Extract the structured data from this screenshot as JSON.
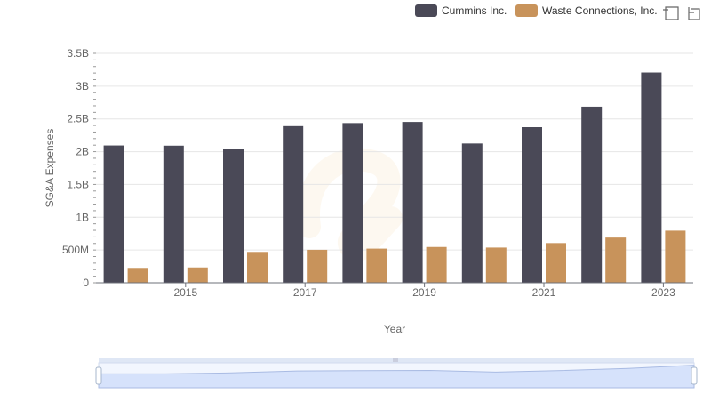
{
  "chart_data": {
    "type": "bar",
    "x": [
      2014,
      2015,
      2016,
      2017,
      2018,
      2019,
      2020,
      2021,
      2022,
      2023
    ],
    "x_tick_labels": [
      "2015",
      "2017",
      "2019",
      "2021",
      "2023"
    ],
    "xlabel": "Year",
    "ylabel": "SG&A Expenses",
    "ylim": [
      0,
      3500000000
    ],
    "y_ticks": [
      0,
      500000000,
      1000000000,
      1500000000,
      2000000000,
      2500000000,
      3000000000,
      3500000000
    ],
    "y_tick_labels": [
      "0",
      "500M",
      "1B",
      "1.5B",
      "2B",
      "2.5B",
      "3B",
      "3.5B"
    ],
    "grid": true,
    "legend_position": "top-right",
    "series": [
      {
        "name": "Cummins Inc.",
        "color": "#4a4957",
        "values": [
          2095000000,
          2092000000,
          2046000000,
          2390000000,
          2437000000,
          2454000000,
          2125000000,
          2374000000,
          2687000000,
          3208000000
        ]
      },
      {
        "name": "Waste Connections, Inc.",
        "color": "#c8935b",
        "values": [
          227000000,
          234000000,
          471000000,
          503000000,
          521000000,
          546000000,
          537000000,
          606000000,
          690000000,
          795000000
        ]
      }
    ]
  },
  "toolbar": {
    "zoom_icon": "zoom-select-icon",
    "reset_icon": "reset-zoom-icon"
  },
  "data_zoom": {
    "start": 0,
    "end": 1
  }
}
